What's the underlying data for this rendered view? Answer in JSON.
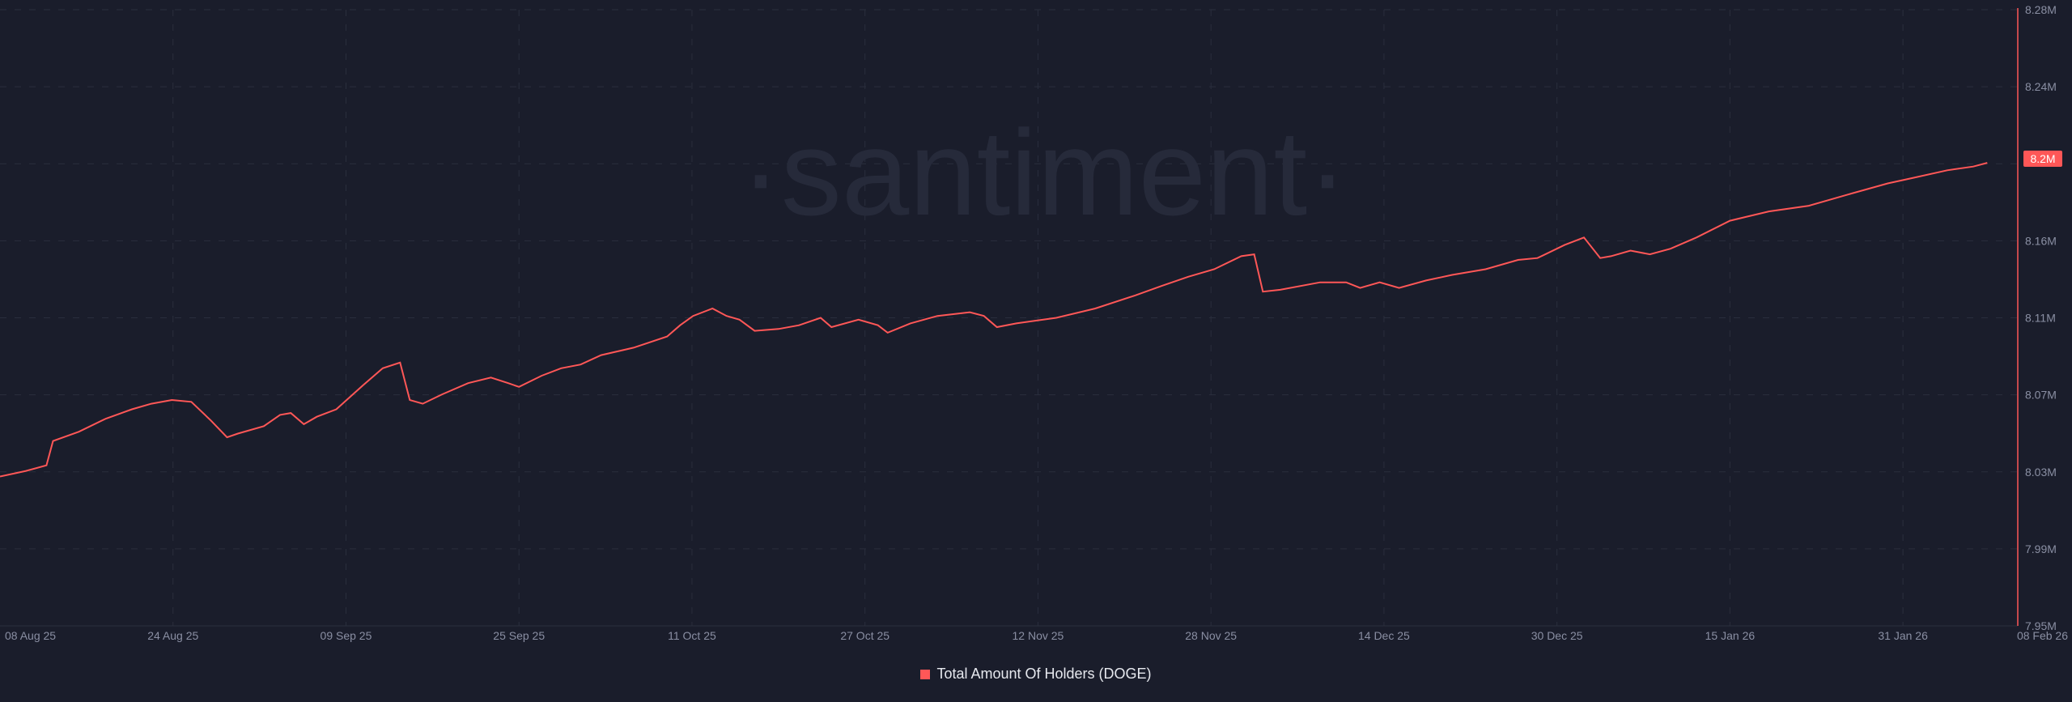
{
  "chart_data": {
    "type": "line",
    "title": "",
    "watermark": "·santiment·",
    "start_date": "08 Aug 25",
    "x_unit": "days since 08 Aug 25",
    "x_ticks": [
      "08 Aug 25",
      "24 Aug 25",
      "09 Sep 25",
      "25 Sep 25",
      "11 Oct 25",
      "27 Oct 25",
      "12 Nov 25",
      "28 Nov 25",
      "14 Dec 25",
      "30 Dec 25",
      "15 Jan 26",
      "31 Jan 26",
      "08 Feb 26"
    ],
    "x_tick_days": [
      0,
      16,
      32,
      48,
      64,
      80,
      96,
      112,
      128,
      144,
      160,
      176,
      184
    ],
    "y_ticks": [
      "8.28M",
      "8.24M",
      "8.2M",
      "8.16M",
      "8.11M",
      "8.07M",
      "8.03M",
      "7.99M",
      "7.95M"
    ],
    "ylim": [
      7.95,
      8.28
    ],
    "y_unit": "millions",
    "last_value_label": "8.2M",
    "series": [
      {
        "name": "Total Amount Of Holders (DOGE)",
        "color": "#ff5757",
        "points": [
          [
            0,
            8.03
          ],
          [
            2.4,
            8.033
          ],
          [
            4.3,
            8.036
          ],
          [
            4.9,
            8.049
          ],
          [
            7.3,
            8.054
          ],
          [
            9.8,
            8.061
          ],
          [
            12.2,
            8.066
          ],
          [
            14,
            8.069
          ],
          [
            15.9,
            8.071
          ],
          [
            17.7,
            8.07
          ],
          [
            19.5,
            8.06
          ],
          [
            21,
            8.051
          ],
          [
            22,
            8.053
          ],
          [
            24.4,
            8.057
          ],
          [
            25.9,
            8.063
          ],
          [
            26.9,
            8.064
          ],
          [
            28.1,
            8.058
          ],
          [
            29.3,
            8.062
          ],
          [
            31.1,
            8.066
          ],
          [
            33.6,
            8.079
          ],
          [
            35.4,
            8.088
          ],
          [
            37,
            8.091
          ],
          [
            37.9,
            8.071
          ],
          [
            39.1,
            8.069
          ],
          [
            40.9,
            8.074
          ],
          [
            43.3,
            8.08
          ],
          [
            45.4,
            8.083
          ],
          [
            47,
            8.08
          ],
          [
            48,
            8.078
          ],
          [
            50.1,
            8.084
          ],
          [
            51.9,
            8.088
          ],
          [
            53.7,
            8.09
          ],
          [
            55.6,
            8.095
          ],
          [
            58.6,
            8.099
          ],
          [
            61.7,
            8.105
          ],
          [
            62.9,
            8.111
          ],
          [
            64.1,
            8.116
          ],
          [
            65.9,
            8.12
          ],
          [
            67.2,
            8.116
          ],
          [
            68.4,
            8.114
          ],
          [
            69.8,
            8.108
          ],
          [
            72,
            8.109
          ],
          [
            73.9,
            8.111
          ],
          [
            75.9,
            8.115
          ],
          [
            76.9,
            8.11
          ],
          [
            79.4,
            8.114
          ],
          [
            81.2,
            8.111
          ],
          [
            82.1,
            8.107
          ],
          [
            84.2,
            8.112
          ],
          [
            86.7,
            8.116
          ],
          [
            89.7,
            8.118
          ],
          [
            91,
            8.116
          ],
          [
            92.2,
            8.11
          ],
          [
            94,
            8.112
          ],
          [
            97.7,
            8.115
          ],
          [
            101.3,
            8.12
          ],
          [
            105,
            8.127
          ],
          [
            107.4,
            8.132
          ],
          [
            109.9,
            8.137
          ],
          [
            112.3,
            8.141
          ],
          [
            114.8,
            8.148
          ],
          [
            116,
            8.149
          ],
          [
            116.8,
            8.129
          ],
          [
            118.4,
            8.13
          ],
          [
            122.1,
            8.134
          ],
          [
            124.5,
            8.134
          ],
          [
            125.8,
            8.131
          ],
          [
            127.6,
            8.134
          ],
          [
            129.4,
            8.131
          ],
          [
            131.9,
            8.135
          ],
          [
            134.3,
            8.138
          ],
          [
            137.4,
            8.141
          ],
          [
            140.4,
            8.146
          ],
          [
            142.2,
            8.147
          ],
          [
            144.7,
            8.154
          ],
          [
            146.5,
            8.158
          ],
          [
            148,
            8.147
          ],
          [
            149,
            8.148
          ],
          [
            150.8,
            8.151
          ],
          [
            152.6,
            8.149
          ],
          [
            154.5,
            8.152
          ],
          [
            156.9,
            8.158
          ],
          [
            160,
            8.167
          ],
          [
            163.6,
            8.172
          ],
          [
            167.3,
            8.175
          ],
          [
            170.9,
            8.181
          ],
          [
            174.6,
            8.187
          ],
          [
            177,
            8.19
          ],
          [
            180.1,
            8.194
          ],
          [
            182.5,
            8.196
          ],
          [
            183.8,
            8.198
          ]
        ]
      }
    ],
    "legend": "bottom-center",
    "grid": true
  }
}
